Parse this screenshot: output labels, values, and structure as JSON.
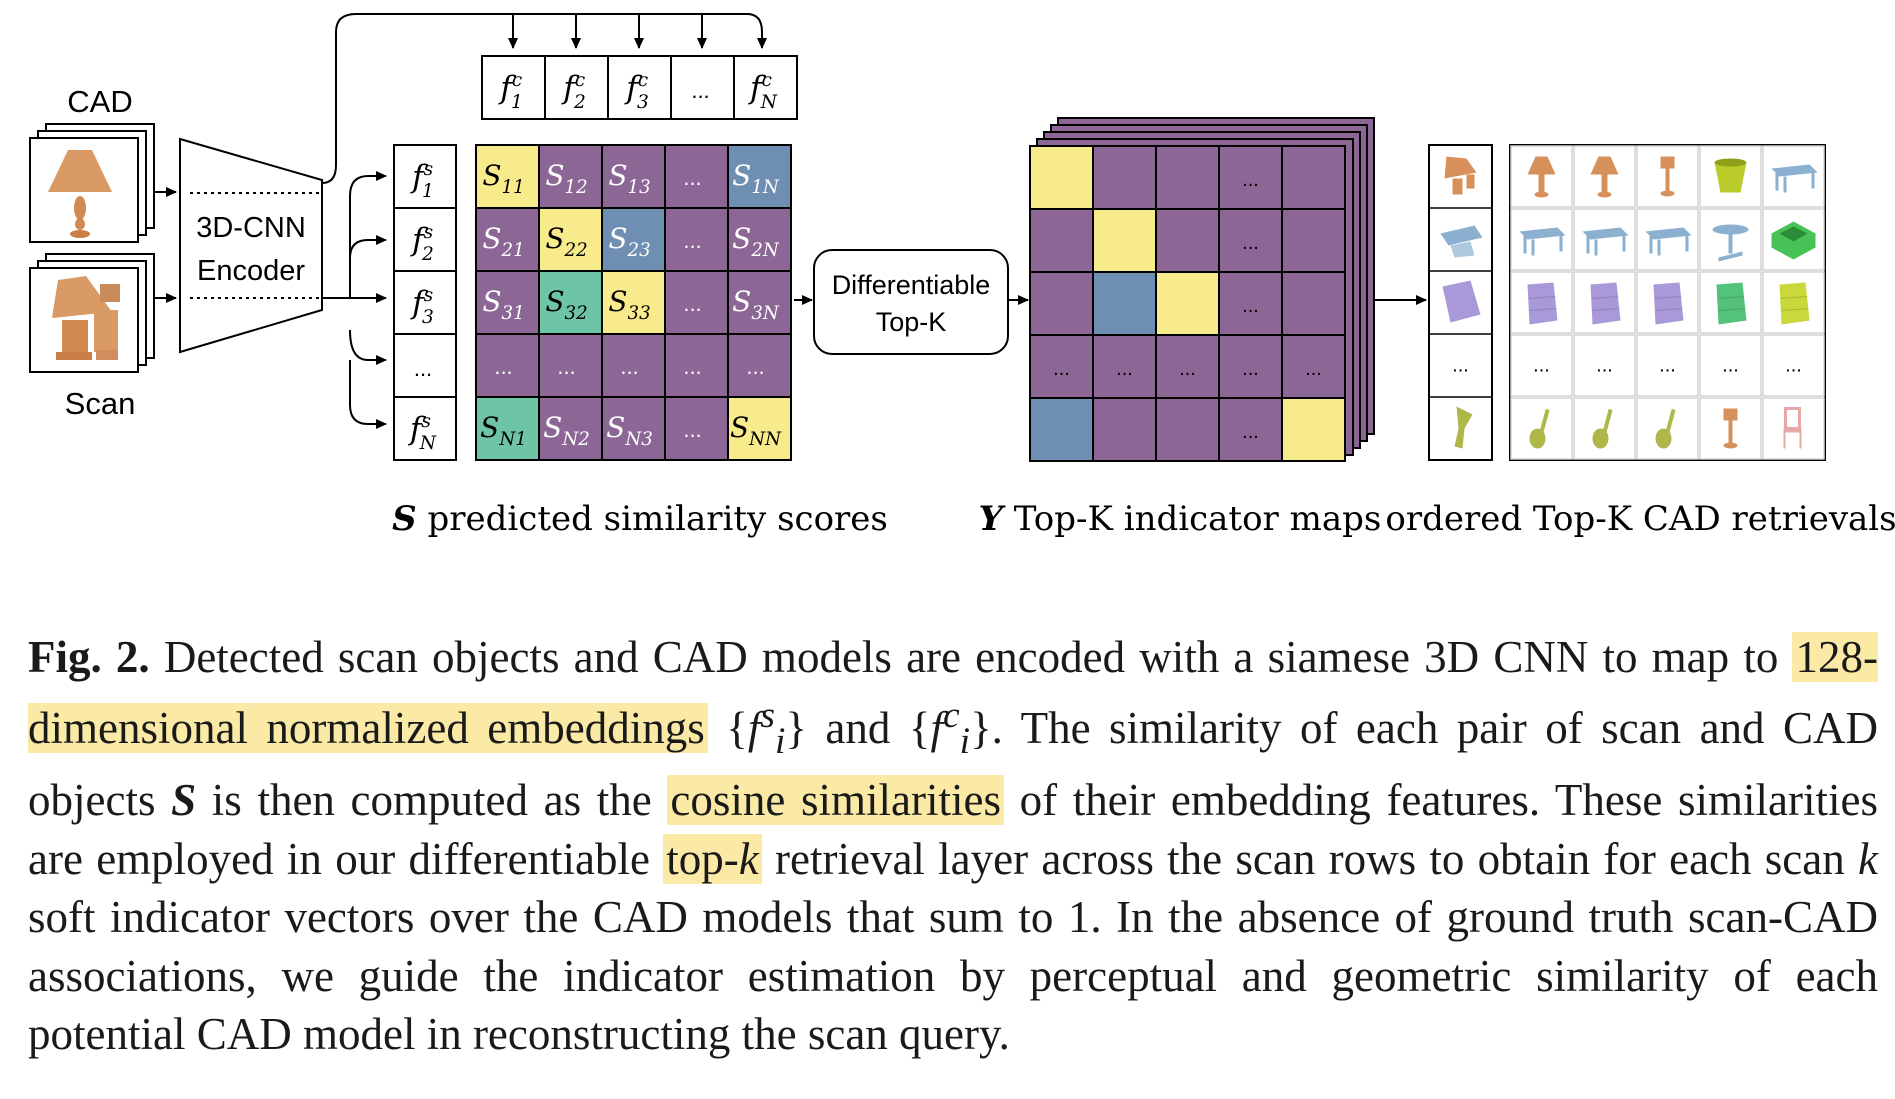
{
  "diagram": {
    "labels": {
      "cad": "CAD",
      "scan": "Scan",
      "encoder_line1": "3D-CNN",
      "encoder_line2": "Encoder",
      "topk_line1": "Differentiable",
      "topk_line2": "Top-K",
      "ellipsis": "...",
      "s_symbol": "S",
      "s_label": " predicted similarity scores",
      "y_symbol": "Y",
      "y_label": " Top-K indicator maps",
      "retrieval_label": "ordered Top-K CAD retrievals"
    },
    "cad_features": [
      {
        "base": "f",
        "sup": "c",
        "sub": "1"
      },
      {
        "base": "f",
        "sup": "c",
        "sub": "2"
      },
      {
        "base": "f",
        "sup": "c",
        "sub": "3"
      },
      {
        "base": "...",
        "sup": "",
        "sub": ""
      },
      {
        "base": "f",
        "sup": "c",
        "sub": "N"
      }
    ],
    "scan_features": [
      {
        "base": "f",
        "sup": "s",
        "sub": "1"
      },
      {
        "base": "f",
        "sup": "s",
        "sub": "2"
      },
      {
        "base": "f",
        "sup": "s",
        "sub": "3"
      },
      {
        "base": "...",
        "sup": "",
        "sub": ""
      },
      {
        "base": "f",
        "sup": "s",
        "sub": "N"
      }
    ],
    "similarity_matrix": [
      [
        {
          "t": "S",
          "s": "11",
          "c": "#f8eb8c"
        },
        {
          "t": "S",
          "s": "12",
          "c": "#8c6796"
        },
        {
          "t": "S",
          "s": "13",
          "c": "#8c6796"
        },
        {
          "t": "...",
          "s": "",
          "c": "#8c6796"
        },
        {
          "t": "S",
          "s": "1N",
          "c": "#6f8fb2"
        }
      ],
      [
        {
          "t": "S",
          "s": "21",
          "c": "#8c6796"
        },
        {
          "t": "S",
          "s": "22",
          "c": "#f8eb8c"
        },
        {
          "t": "S",
          "s": "23",
          "c": "#6f8fb2"
        },
        {
          "t": "...",
          "s": "",
          "c": "#8c6796"
        },
        {
          "t": "S",
          "s": "2N",
          "c": "#8c6796"
        }
      ],
      [
        {
          "t": "S",
          "s": "31",
          "c": "#8c6796"
        },
        {
          "t": "S",
          "s": "32",
          "c": "#6ec5a5"
        },
        {
          "t": "S",
          "s": "33",
          "c": "#f8eb8c"
        },
        {
          "t": "...",
          "s": "",
          "c": "#8c6796"
        },
        {
          "t": "S",
          "s": "3N",
          "c": "#8c6796"
        }
      ],
      [
        {
          "t": "...",
          "s": "",
          "c": "#8c6796"
        },
        {
          "t": "...",
          "s": "",
          "c": "#8c6796"
        },
        {
          "t": "...",
          "s": "",
          "c": "#8c6796"
        },
        {
          "t": "...",
          "s": "",
          "c": "#8c6796"
        },
        {
          "t": "...",
          "s": "",
          "c": "#8c6796"
        }
      ],
      [
        {
          "t": "S",
          "s": "N1",
          "c": "#6ec5a5"
        },
        {
          "t": "S",
          "s": "N2",
          "c": "#8c6796"
        },
        {
          "t": "S",
          "s": "N3",
          "c": "#8c6796"
        },
        {
          "t": "...",
          "s": "",
          "c": "#8c6796"
        },
        {
          "t": "S",
          "s": "NN",
          "c": "#f8eb8c"
        }
      ]
    ],
    "indicator_map": [
      [
        {
          "t": "",
          "c": "#f8eb8c"
        },
        {
          "t": "",
          "c": "#8c6796"
        },
        {
          "t": "",
          "c": "#8c6796"
        },
        {
          "t": "...",
          "c": "#8c6796"
        },
        {
          "t": "",
          "c": "#8c6796"
        }
      ],
      [
        {
          "t": "",
          "c": "#8c6796"
        },
        {
          "t": "",
          "c": "#f8eb8c"
        },
        {
          "t": "",
          "c": "#8c6796"
        },
        {
          "t": "...",
          "c": "#8c6796"
        },
        {
          "t": "",
          "c": "#8c6796"
        }
      ],
      [
        {
          "t": "",
          "c": "#8c6796"
        },
        {
          "t": "",
          "c": "#6f8fb2"
        },
        {
          "t": "",
          "c": "#f8eb8c"
        },
        {
          "t": "...",
          "c": "#8c6796"
        },
        {
          "t": "",
          "c": "#8c6796"
        }
      ],
      [
        {
          "t": "...",
          "c": "#8c6796"
        },
        {
          "t": "...",
          "c": "#8c6796"
        },
        {
          "t": "...",
          "c": "#8c6796"
        },
        {
          "t": "...",
          "c": "#8c6796"
        },
        {
          "t": "...",
          "c": "#8c6796"
        }
      ],
      [
        {
          "t": "",
          "c": "#6f8fb2"
        },
        {
          "t": "",
          "c": "#8c6796"
        },
        {
          "t": "",
          "c": "#8c6796"
        },
        {
          "t": "...",
          "c": "#8c6796"
        },
        {
          "t": "",
          "c": "#f8eb8c"
        }
      ]
    ],
    "retrieval_rows": [
      {
        "scan": {
          "icon": "lamp-scan",
          "color": "#d8905a"
        },
        "results": [
          {
            "icon": "lamp",
            "color": "#d8905a"
          },
          {
            "icon": "lamp",
            "color": "#d8905a"
          },
          {
            "icon": "table-lamp",
            "color": "#d8905a"
          },
          {
            "icon": "bin",
            "color": "#b9cc2a"
          },
          {
            "icon": "table",
            "color": "#8bb0d0"
          }
        ]
      },
      {
        "scan": {
          "icon": "table-scan",
          "color": "#8bb0d0"
        },
        "results": [
          {
            "icon": "table",
            "color": "#8bb0d0"
          },
          {
            "icon": "table",
            "color": "#8bb0d0"
          },
          {
            "icon": "table",
            "color": "#8bb0d0"
          },
          {
            "icon": "round-table",
            "color": "#8bb0d0"
          },
          {
            "icon": "box",
            "color": "#46c257"
          }
        ]
      },
      {
        "scan": {
          "icon": "cabinet-scan",
          "color": "#a999d8"
        },
        "results": [
          {
            "icon": "cabinet",
            "color": "#a999d8"
          },
          {
            "icon": "cabinet",
            "color": "#a999d8"
          },
          {
            "icon": "cabinet",
            "color": "#a999d8"
          },
          {
            "icon": "cabinet",
            "color": "#55c27b"
          },
          {
            "icon": "cabinet",
            "color": "#c9d83a"
          }
        ]
      },
      {
        "scan": {
          "icon": "ellipsis",
          "color": "#000000"
        },
        "results": [
          {
            "icon": "ellipsis",
            "color": "#000000"
          },
          {
            "icon": "ellipsis",
            "color": "#000000"
          },
          {
            "icon": "ellipsis",
            "color": "#000000"
          },
          {
            "icon": "ellipsis",
            "color": "#000000"
          },
          {
            "icon": "ellipsis",
            "color": "#000000"
          }
        ]
      },
      {
        "scan": {
          "icon": "guitar-scan",
          "color": "#aeb84a"
        },
        "results": [
          {
            "icon": "guitar",
            "color": "#aeb84a"
          },
          {
            "icon": "guitar",
            "color": "#aeb84a"
          },
          {
            "icon": "guitar",
            "color": "#aeb84a"
          },
          {
            "icon": "table-lamp",
            "color": "#d8905a"
          },
          {
            "icon": "chair",
            "color": "#e7a7a7"
          }
        ]
      }
    ]
  },
  "caption": {
    "fig_label": "Fig. 2.",
    "t1": " Detected scan objects and CAD models are encoded with a siamese 3D CNN to map to ",
    "hl1": "128-dimensional normalized embeddings",
    "t2a": " {",
    "m_f1": "f",
    "m_sup1": "s",
    "m_sub1": "i",
    "t2b": "} and {",
    "m_f2": "f",
    "m_sup2": "c",
    "m_sub2": "i",
    "t2c": "}. The similarity of each pair of scan and CAD objects ",
    "s_symbol": "S",
    "t3": " is then computed as the ",
    "hl2": "cosine similarities",
    "t4": " of their embedding features. These similarities are employed in our differentiable ",
    "hl3a": "top-",
    "hl3b": "k",
    "t5": " retrieval layer across the scan rows to obtain for each scan ",
    "k": "k",
    "t6": " soft indicator vectors over the CAD models that sum to 1. In the absence of ground truth scan-CAD associations, we guide the indicator estimation by perceptual and geometric similarity of each potential CAD model in reconstructing the scan query."
  }
}
